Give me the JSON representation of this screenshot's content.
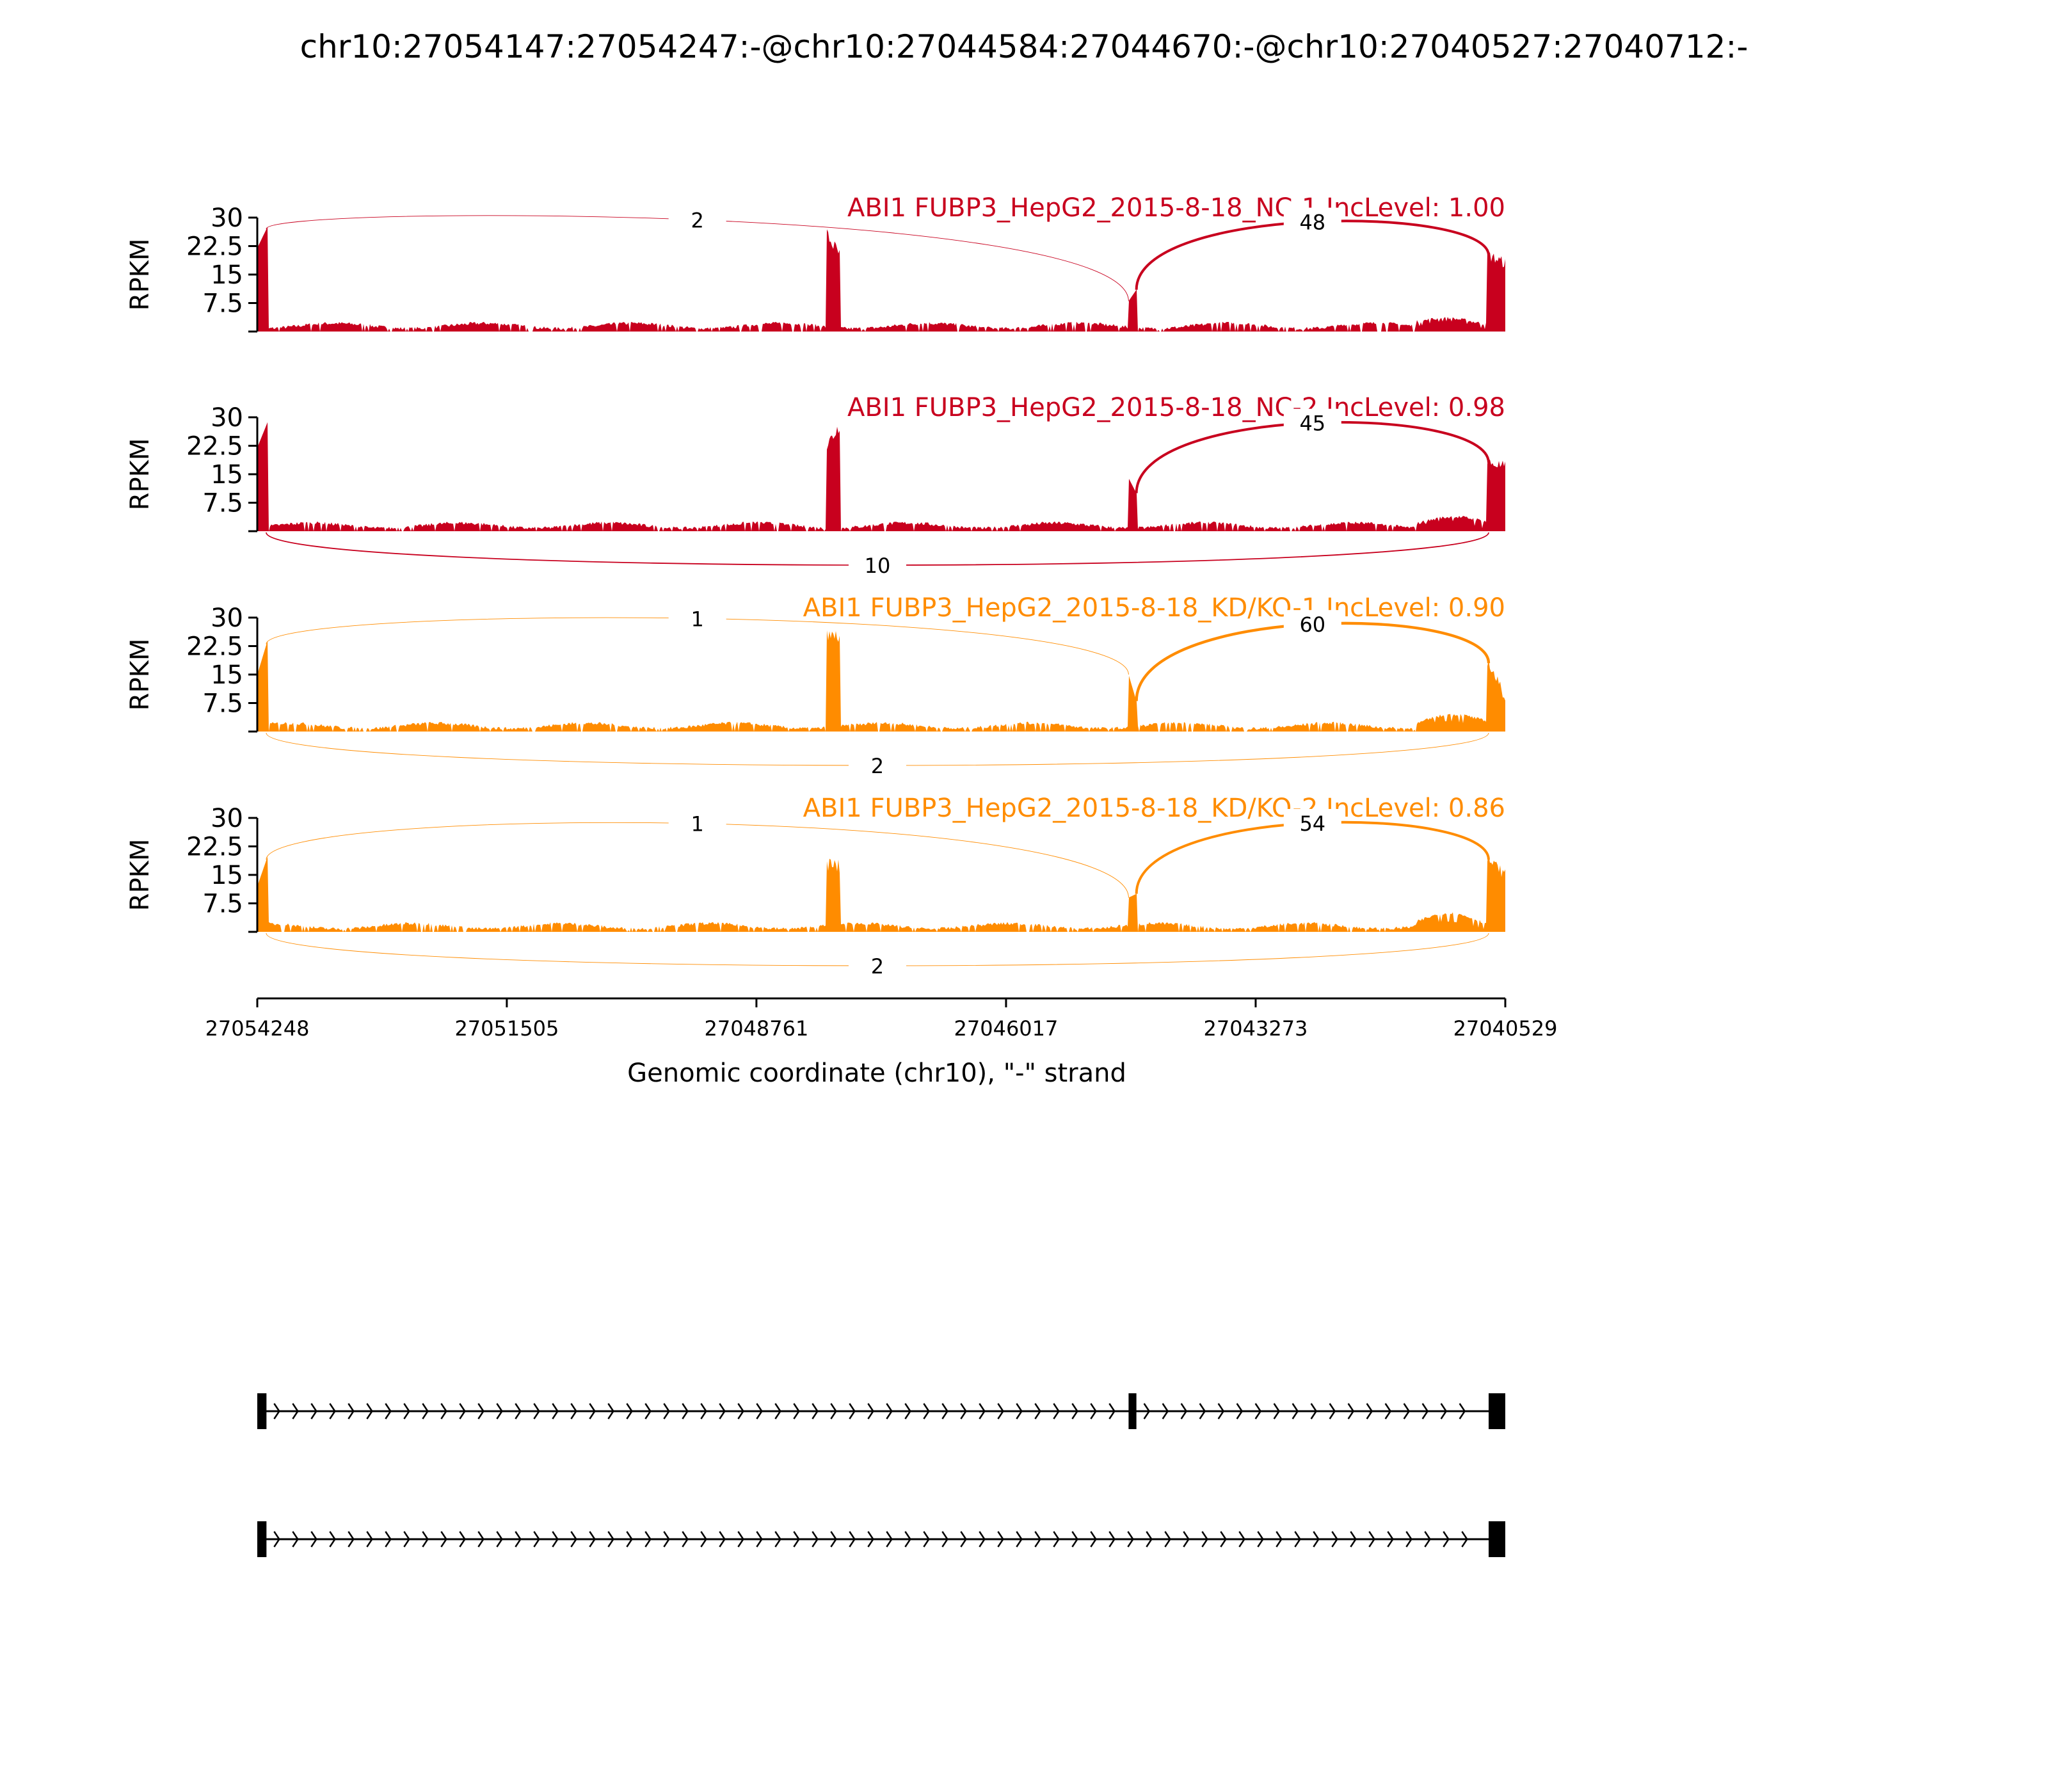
{
  "chart_data": {
    "type": "area",
    "title": "chr10:27054147:27054247:-@chr10:27044584:27044670:-@chr10:27040527:27040712:-",
    "xlabel": "Genomic coordinate (chr10), \"-\" strand",
    "ylabel": "RPKM",
    "xlim": [
      27054248,
      27040529
    ],
    "x_ticks": [
      "27054248",
      "27051505",
      "27048761",
      "27046017",
      "27043273",
      "27040529"
    ],
    "ylim": [
      0,
      30
    ],
    "y_ticks": [
      "7.5",
      "15",
      "22.5",
      "30"
    ],
    "exons": [
      {
        "start": 27054248,
        "end": 27054147
      },
      {
        "start": 27044670,
        "end": 27044584
      },
      {
        "start": 27040712,
        "end": 27040529
      }
    ],
    "tracks": [
      {
        "label": "ABI1 FUBP3_HepG2_2015-8-18_NC-1 IncLevel: 1.00",
        "color": "#c8001e",
        "coverage": [
          [
            27054248,
            22
          ],
          [
            27054150,
            27
          ],
          [
            27048000,
            26
          ],
          [
            27047900,
            20
          ],
          [
            27044670,
            8
          ],
          [
            27044600,
            11
          ],
          [
            27040712,
            20
          ],
          [
            27040529,
            18
          ]
        ],
        "junctions": [
          {
            "label": "2",
            "from": 27054150,
            "to": 27044670,
            "side": "above",
            "weight": 0.5
          },
          {
            "label": "48",
            "from": 27044584,
            "to": 27040712,
            "side": "above",
            "weight": 2.2
          }
        ]
      },
      {
        "label": "ABI1 FUBP3_HepG2_2015-8-18_NC-2 IncLevel: 0.98",
        "color": "#c8001e",
        "coverage": [
          [
            27054248,
            22
          ],
          [
            27054150,
            28
          ],
          [
            27048000,
            22
          ],
          [
            27047900,
            28
          ],
          [
            27044670,
            14
          ],
          [
            27044600,
            10
          ],
          [
            27040712,
            18
          ],
          [
            27040529,
            17
          ]
        ],
        "junctions": [
          {
            "label": "45",
            "from": 27044584,
            "to": 27040712,
            "side": "above",
            "weight": 2.2
          },
          {
            "label": "10",
            "from": 27054150,
            "to": 27040712,
            "side": "below",
            "weight": 1.0
          }
        ]
      },
      {
        "label": "ABI1 FUBP3_HepG2_2015-8-18_KD/KO-1 IncLevel: 0.90",
        "color": "#ff8c00",
        "coverage": [
          [
            27054248,
            15
          ],
          [
            27054150,
            23
          ],
          [
            27048000,
            25
          ],
          [
            27047900,
            25
          ],
          [
            27044670,
            15
          ],
          [
            27044600,
            8
          ],
          [
            27040712,
            18
          ],
          [
            27040529,
            9
          ]
        ],
        "junctions": [
          {
            "label": "1",
            "from": 27054150,
            "to": 27044670,
            "side": "above",
            "weight": 0.5
          },
          {
            "label": "60",
            "from": 27044584,
            "to": 27040712,
            "side": "above",
            "weight": 2.4
          },
          {
            "label": "2",
            "from": 27054150,
            "to": 27040712,
            "side": "below",
            "weight": 0.5
          }
        ]
      },
      {
        "label": "ABI1 FUBP3_HepG2_2015-8-18_KD/KO-2 IncLevel: 0.86",
        "color": "#ff8c00",
        "coverage": [
          [
            27054248,
            12
          ],
          [
            27054150,
            19
          ],
          [
            27048000,
            18
          ],
          [
            27047900,
            17
          ],
          [
            27044670,
            9
          ],
          [
            27044600,
            10
          ],
          [
            27040712,
            19
          ],
          [
            27040529,
            15
          ]
        ],
        "junctions": [
          {
            "label": "1",
            "from": 27054150,
            "to": 27044670,
            "side": "above",
            "weight": 0.5
          },
          {
            "label": "54",
            "from": 27044584,
            "to": 27040712,
            "side": "above",
            "weight": 2.2
          },
          {
            "label": "2",
            "from": 27054150,
            "to": 27040712,
            "side": "below",
            "weight": 0.5
          }
        ]
      }
    ],
    "isoforms": [
      {
        "exons": [
          [
            27054248,
            27054147
          ],
          [
            27044670,
            27044584
          ],
          [
            27040712,
            27040529
          ]
        ]
      },
      {
        "exons": [
          [
            27054248,
            27054147
          ],
          [
            27040712,
            27040529
          ]
        ]
      }
    ]
  }
}
